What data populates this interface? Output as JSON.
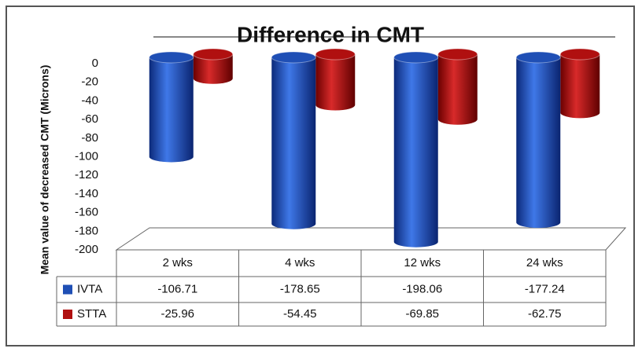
{
  "chart_data": {
    "type": "bar",
    "title": "Difference in CMT",
    "y_label": "Mean value of decreased CMT (Microns)",
    "categories": [
      "2 wks",
      "4 wks",
      "12 wks",
      "24 wks"
    ],
    "series": [
      {
        "name": "IVTA",
        "color": "#1f4fb5",
        "values": [
          -106.71,
          -178.65,
          -198.06,
          -177.24
        ]
      },
      {
        "name": "STTA",
        "color": "#b01010",
        "values": [
          -25.96,
          -54.45,
          -69.85,
          -62.75
        ]
      }
    ],
    "ylim": [
      -200,
      0
    ],
    "yticks": [
      0,
      -20,
      -40,
      -60,
      -80,
      -100,
      -120,
      -140,
      -160,
      -180,
      -200
    ]
  }
}
